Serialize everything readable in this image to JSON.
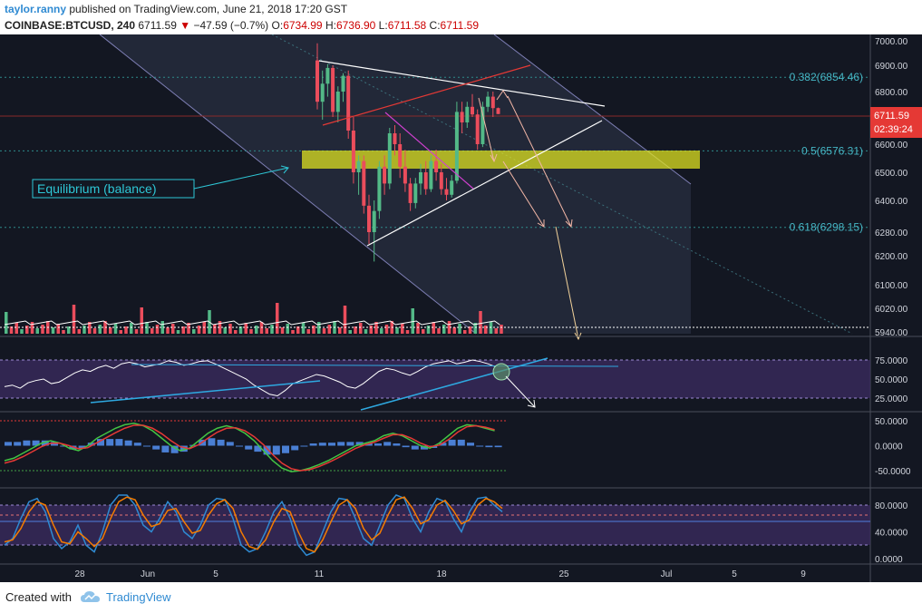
{
  "header": {
    "author": "taylor.ranny",
    "published": "published on TradingView.com, June 21, 2018 17:20 GST",
    "symbol": "COINBASE:BTCUSD, 240",
    "last": "6711.59",
    "change": "−47.59 (−0.7%)",
    "o_label": "O:",
    "o": "6734.99",
    "h_label": "H:",
    "h": "6736.90",
    "l_label": "L:",
    "l": "6711.58",
    "c_label": "C:",
    "c": "6711.59"
  },
  "price_badge": {
    "value": "6711.59",
    "countdown": "02:39:24"
  },
  "annotation": {
    "equilibrium": "Equilibrium (balance)"
  },
  "footer": {
    "created": "Created with",
    "brand": "TradingView"
  },
  "colors": {
    "background": "#131722",
    "up": "#53b987",
    "down": "#eb4d5c",
    "highlight": "#e5e820",
    "rsi_band": "#3a2a5e",
    "accent": "#2f8ad2"
  },
  "chart_data": [
    {
      "type": "candlestick",
      "panel": "price",
      "y_ticks": [
        7000,
        6900,
        6800,
        6700,
        6600,
        6500,
        6400,
        6280,
        6200,
        6100,
        6020,
        5940
      ],
      "y_tick_labels": [
        "7000.00",
        "6900.00",
        "6800.00",
        "6700.00",
        "6600.00",
        "6500.00",
        "6400.00",
        "6280.00",
        "6200.00",
        "6100.00",
        "6020.00",
        "5940.00"
      ],
      "x_tick_labels": [
        "28",
        "Jun",
        "5",
        "11",
        "18",
        "25",
        "Jul",
        "5",
        "9"
      ],
      "fib_levels": [
        {
          "label": "0.382(6854.46)",
          "value": 6854.46
        },
        {
          "label": "0.5(6576.31)",
          "value": 6576.31
        },
        {
          "label": "0.618(6298.15)",
          "value": 6298.15
        }
      ],
      "last_price": 6711.59,
      "candles": [
        [
          6920,
          6990,
          6730,
          6760
        ],
        [
          6760,
          6880,
          6690,
          6830
        ],
        [
          6830,
          6905,
          6780,
          6890
        ],
        [
          6890,
          6900,
          6700,
          6720
        ],
        [
          6720,
          6820,
          6680,
          6800
        ],
        [
          6800,
          6870,
          6760,
          6860
        ],
        [
          6860,
          6880,
          6620,
          6650
        ],
        [
          6650,
          6700,
          6460,
          6500
        ],
        [
          6500,
          6560,
          6420,
          6540
        ],
        [
          6540,
          6560,
          6350,
          6380
        ],
        [
          6380,
          6420,
          6240,
          6280
        ],
        [
          6280,
          6400,
          6180,
          6360
        ],
        [
          6360,
          6540,
          6330,
          6520
        ],
        [
          6520,
          6560,
          6420,
          6460
        ],
        [
          6460,
          6660,
          6440,
          6640
        ],
        [
          6640,
          6670,
          6560,
          6600
        ],
        [
          6600,
          6640,
          6480,
          6520
        ],
        [
          6520,
          6580,
          6430,
          6460
        ],
        [
          6460,
          6480,
          6360,
          6390
        ],
        [
          6390,
          6480,
          6370,
          6460
        ],
        [
          6460,
          6530,
          6420,
          6500
        ],
        [
          6500,
          6540,
          6420,
          6440
        ],
        [
          6440,
          6560,
          6430,
          6540
        ],
        [
          6540,
          6580,
          6470,
          6500
        ],
        [
          6500,
          6530,
          6420,
          6440
        ],
        [
          6440,
          6480,
          6400,
          6420
        ],
        [
          6420,
          6490,
          6410,
          6470
        ],
        [
          6470,
          6760,
          6460,
          6720
        ],
        [
          6720,
          6760,
          6640,
          6680
        ],
        [
          6680,
          6760,
          6660,
          6740
        ],
        [
          6740,
          6790,
          6700,
          6710
        ],
        [
          6710,
          6730,
          6580,
          6600
        ],
        [
          6600,
          6760,
          6590,
          6740
        ],
        [
          6740,
          6800,
          6720,
          6780
        ],
        [
          6780,
          6800,
          6700,
          6734.99
        ],
        [
          6734.99,
          6736.9,
          6711.58,
          6711.59
        ]
      ]
    },
    {
      "type": "line",
      "panel": "rsi",
      "y_tick_labels": [
        "75.0000",
        "50.0000",
        "25.0000"
      ],
      "values": [
        40,
        42,
        38,
        45,
        48,
        50,
        44,
        46,
        52,
        58,
        62,
        60,
        65,
        68,
        64,
        70,
        72,
        70,
        66,
        68,
        70,
        74,
        72,
        68,
        70,
        73,
        74,
        70,
        65,
        60,
        55,
        50,
        42,
        36,
        30,
        28,
        35,
        44,
        48,
        52,
        56,
        54,
        50,
        46,
        40,
        38,
        44,
        52,
        60,
        64,
        62,
        58,
        55,
        60,
        66,
        70,
        72,
        74,
        70,
        72,
        75,
        73,
        70,
        66
      ]
    },
    {
      "type": "line",
      "panel": "macd",
      "y_tick_labels": [
        "50.0000",
        "0.0000",
        "-50.0000"
      ],
      "macd": [
        -30,
        -25,
        -15,
        -5,
        5,
        10,
        5,
        -5,
        -10,
        0,
        15,
        25,
        35,
        42,
        45,
        40,
        30,
        15,
        0,
        -10,
        -5,
        10,
        25,
        35,
        40,
        35,
        25,
        10,
        -10,
        -30,
        -45,
        -52,
        -50,
        -45,
        -38,
        -30,
        -20,
        -10,
        0,
        5,
        10,
        20,
        25,
        20,
        10,
        0,
        -5,
        5,
        20,
        35,
        42,
        40,
        35,
        30
      ],
      "signal": [
        -35,
        -30,
        -22,
        -12,
        -2,
        5,
        5,
        0,
        -6,
        -4,
        6,
        16,
        26,
        35,
        41,
        41,
        35,
        24,
        10,
        -2,
        -6,
        2,
        15,
        27,
        35,
        36,
        30,
        18,
        2,
        -18,
        -35,
        -46,
        -50,
        -48,
        -42,
        -34,
        -25,
        -15,
        -5,
        2,
        7,
        15,
        22,
        22,
        15,
        5,
        -2,
        1,
        12,
        27,
        38,
        40,
        37,
        32
      ]
    },
    {
      "type": "line",
      "panel": "stoch",
      "y_tick_labels": [
        "80.0000",
        "40.0000",
        "0.0000"
      ],
      "k": [
        20,
        30,
        60,
        85,
        90,
        70,
        30,
        15,
        25,
        50,
        20,
        10,
        40,
        80,
        95,
        95,
        80,
        50,
        40,
        60,
        85,
        70,
        40,
        30,
        50,
        80,
        90,
        88,
        60,
        20,
        10,
        15,
        40,
        70,
        85,
        60,
        20,
        5,
        10,
        40,
        70,
        90,
        88,
        60,
        30,
        20,
        50,
        80,
        95,
        90,
        60,
        40,
        70,
        90,
        85,
        60,
        40,
        70,
        90,
        92,
        80,
        70
      ],
      "d": [
        25,
        28,
        45,
        70,
        85,
        80,
        50,
        25,
        22,
        40,
        30,
        18,
        30,
        60,
        85,
        92,
        88,
        65,
        48,
        52,
        72,
        75,
        55,
        38,
        42,
        65,
        82,
        88,
        75,
        40,
        18,
        14,
        28,
        55,
        75,
        70,
        40,
        15,
        10,
        28,
        55,
        80,
        88,
        75,
        45,
        28,
        38,
        65,
        88,
        92,
        75,
        52,
        58,
        80,
        87,
        72,
        52,
        58,
        80,
        90,
        85,
        75
      ]
    }
  ]
}
